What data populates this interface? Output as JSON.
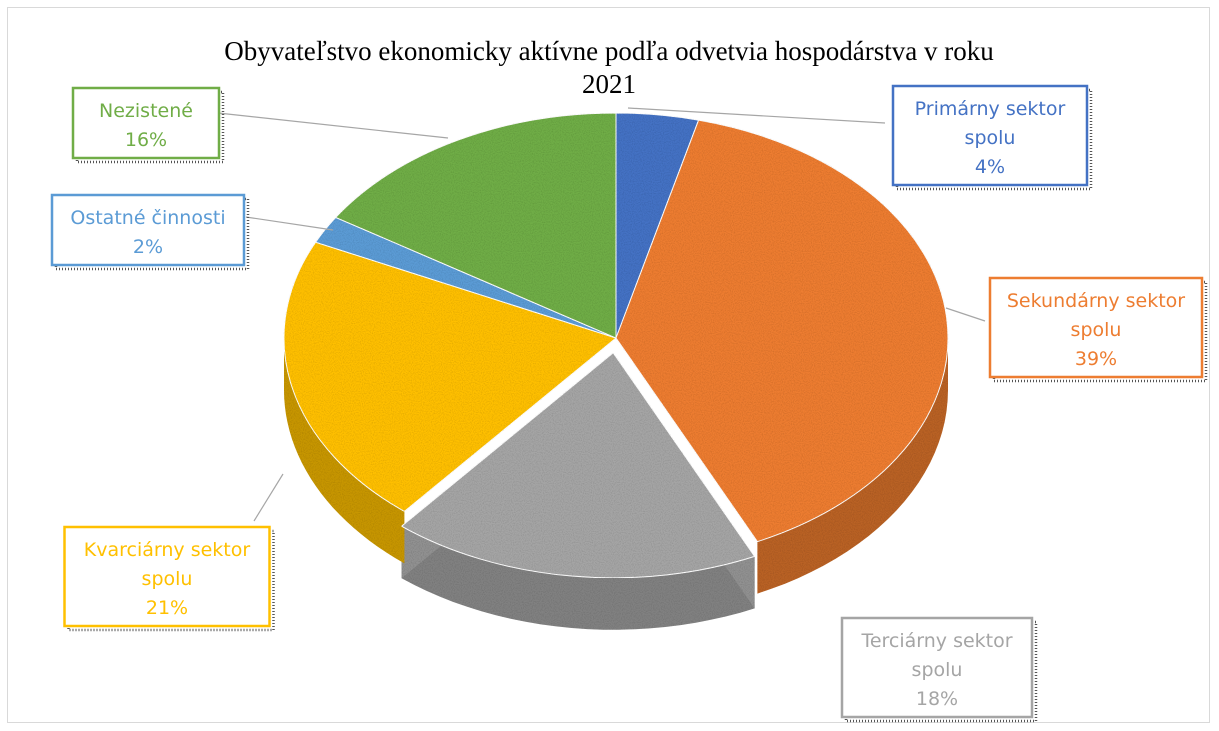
{
  "chart_data": {
    "type": "pie",
    "title": "Obyvateľstvo ekonomicky aktívne podľa odvetvia hospodárstva v roku 2021",
    "title_lines": [
      "Obyvateľstvo ekonomicky aktívne podľa odvetvia hospodárstva v roku",
      "2021"
    ],
    "style": "3D exploded pie",
    "slices": [
      {
        "label_lines": [
          "Primárny sektor",
          "spolu"
        ],
        "percent_label": "4%",
        "value": 4,
        "color": "#4472c4"
      },
      {
        "label_lines": [
          "Sekundárny sektor",
          "spolu"
        ],
        "percent_label": "39%",
        "value": 39,
        "color": "#ed7d31"
      },
      {
        "label_lines": [
          "Terciárny sektor",
          "spolu"
        ],
        "percent_label": "18%",
        "value": 18,
        "color": "#a5a5a5"
      },
      {
        "label_lines": [
          "Kvarciárny sektor",
          "spolu"
        ],
        "percent_label": "21%",
        "value": 21,
        "color": "#ffc000"
      },
      {
        "label_lines": [
          "Ostatné činnosti"
        ],
        "percent_label": "2%",
        "value": 2,
        "color": "#5b9bd5"
      },
      {
        "label_lines": [
          "Nezistené"
        ],
        "percent_label": "16%",
        "value": 16,
        "color": "#70ad47"
      }
    ]
  }
}
